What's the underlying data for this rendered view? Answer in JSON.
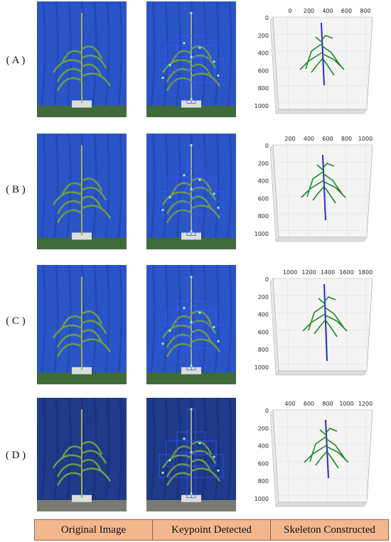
{
  "rows": [
    {
      "label": "( A )",
      "x_ticks": [
        "0",
        "200",
        "400",
        "600",
        "800"
      ],
      "y_ticks": [
        "0",
        "200",
        "400",
        "600",
        "800",
        "1000"
      ]
    },
    {
      "label": "( B )",
      "x_ticks": [
        "200",
        "400",
        "600",
        "800",
        "1000"
      ],
      "y_ticks": [
        "0",
        "200",
        "400",
        "600",
        "800",
        "1000"
      ]
    },
    {
      "label": "( C )",
      "x_ticks": [
        "1000",
        "1200",
        "1400",
        "1600",
        "1800"
      ],
      "y_ticks": [
        "0",
        "200",
        "400",
        "600",
        "800",
        "1000"
      ]
    },
    {
      "label": "( D )",
      "x_ticks": [
        "400",
        "600",
        "800",
        "1000",
        "1200"
      ],
      "y_ticks": [
        "0",
        "200",
        "400",
        "600",
        "800",
        "1000"
      ]
    }
  ],
  "columns": [
    "Original Image",
    "Keypoint Detected",
    "Skeleton Constructed"
  ],
  "colors": {
    "stem": "#2a2ad0",
    "leaf": "#1f8a1f",
    "box": "#3a55ff",
    "keypoint": "#7fffd4",
    "footer_bg": "#f3b78e",
    "backdrop": "#2a55c8"
  }
}
